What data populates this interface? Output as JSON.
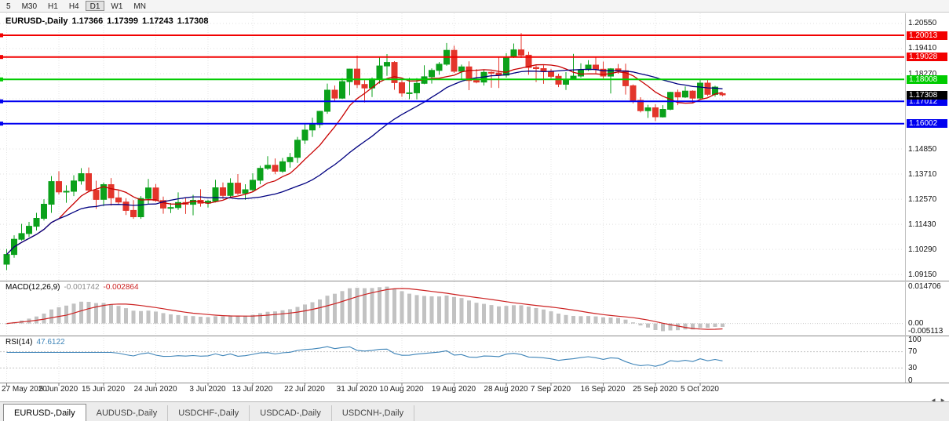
{
  "toolbar": {
    "timeframes": [
      {
        "label": "5",
        "active": false
      },
      {
        "label": "M30",
        "active": false
      },
      {
        "label": "H1",
        "active": false
      },
      {
        "label": "H4",
        "active": false
      },
      {
        "label": "D1",
        "active": true
      },
      {
        "label": "W1",
        "active": false
      },
      {
        "label": "MN",
        "active": false
      }
    ]
  },
  "chart": {
    "title": "EURUSD-,Daily",
    "ohlc": {
      "open": "1.17366",
      "high": "1.17399",
      "low": "1.17243",
      "close": "1.17308"
    },
    "price_axis_labels": [
      {
        "text": "1.20550",
        "value": 1.2055
      },
      {
        "text": "1.19410",
        "value": 1.1941
      },
      {
        "text": "1.18270",
        "value": 1.1827
      },
      {
        "text": "1.14850",
        "value": 1.1485
      },
      {
        "text": "1.13710",
        "value": 1.1371
      },
      {
        "text": "1.12570",
        "value": 1.1257
      },
      {
        "text": "1.11430",
        "value": 1.1143
      },
      {
        "text": "1.10290",
        "value": 1.1029
      },
      {
        "text": "1.09150",
        "value": 1.0915
      }
    ],
    "grid_values": [
      1.0915,
      1.1029,
      1.1143,
      1.1257,
      1.1371,
      1.1485,
      1.1599,
      1.1713,
      1.1827,
      1.1941,
      1.2055
    ],
    "hlines": [
      {
        "text": "1.20013",
        "value": 1.20013,
        "color": "#f20000"
      },
      {
        "text": "1.19028",
        "value": 1.19028,
        "color": "#f20000"
      },
      {
        "text": "1.18008",
        "value": 1.18008,
        "color": "#00cc00"
      },
      {
        "text": "1.17012",
        "value": 1.17012,
        "color": "#0000f0"
      },
      {
        "text": "1.16002",
        "value": 1.16002,
        "color": "#0000f0"
      }
    ],
    "current_price": {
      "text": "1.17308",
      "value": 1.17308,
      "bg": "#000000"
    }
  },
  "indicators": {
    "macd": {
      "name": "MACD(12,26,9)",
      "main_value": "-0.001742",
      "signal_value": "-0.002864",
      "axis_labels": [
        {
          "text": "0.014706",
          "anchor": "max"
        },
        {
          "text": "0.00",
          "anchor": "zero"
        },
        {
          "text": "-0.005113",
          "anchor": "min"
        }
      ],
      "histogram_color": "#c2c2c2",
      "signal_color": "#cc2222"
    },
    "rsi": {
      "name": "RSI(14)",
      "value": "47.6122",
      "axis_labels": [
        {
          "text": "100",
          "value": 100
        },
        {
          "text": "70",
          "value": 70
        },
        {
          "text": "30",
          "value": 30
        },
        {
          "text": "0",
          "value": 0
        }
      ],
      "levels": [
        70,
        30
      ],
      "color": "#3e84b8"
    }
  },
  "date_axis": [
    {
      "text": "27 May 2020",
      "bar": 0
    },
    {
      "text": "5 Jun 2020",
      "bar": 7
    },
    {
      "text": "15 Jun 2020",
      "bar": 13
    },
    {
      "text": "24 Jun 2020",
      "bar": 20
    },
    {
      "text": "3 Jul 2020",
      "bar": 27
    },
    {
      "text": "13 Jul 2020",
      "bar": 33
    },
    {
      "text": "22 Jul 2020",
      "bar": 40
    },
    {
      "text": "31 Jul 2020",
      "bar": 47
    },
    {
      "text": "10 Aug 2020",
      "bar": 53
    },
    {
      "text": "19 Aug 2020",
      "bar": 60
    },
    {
      "text": "28 Aug 2020",
      "bar": 67
    },
    {
      "text": "7 Sep 2020",
      "bar": 73
    },
    {
      "text": "16 Sep 2020",
      "bar": 80
    },
    {
      "text": "25 Sep 2020",
      "bar": 87
    },
    {
      "text": "5 Oct 2020",
      "bar": 93
    }
  ],
  "tabs": [
    {
      "label": "EURUSD-,Daily",
      "active": true
    },
    {
      "label": "AUDUSD-,Daily",
      "active": false
    },
    {
      "label": "USDCHF-,Daily",
      "active": false
    },
    {
      "label": "USDCAD-,Daily",
      "active": false
    },
    {
      "label": "USDCNH-,Daily",
      "active": false
    }
  ],
  "icons": {
    "tab_scroll_left": "◄",
    "tab_scroll_right": "►"
  },
  "chart_data": {
    "type": "candlestick",
    "symbol": "EURUSD-",
    "period": "Daily",
    "ylim": [
      1.0887,
      1.2101
    ],
    "up_color": "#0ba11b",
    "down_color": "#e3352b",
    "ma_overlays": [
      {
        "period": 8,
        "color": "#c80000"
      },
      {
        "period": 21,
        "color": "#000080"
      }
    ],
    "candles": [
      [
        "2020-05-27",
        1.0962,
        1.1031,
        1.0935,
        1.1006
      ],
      [
        "2020-05-28",
        1.1006,
        1.1093,
        1.0991,
        1.1075
      ],
      [
        "2020-05-29",
        1.1075,
        1.1145,
        1.1069,
        1.1101
      ],
      [
        "2020-06-01",
        1.1101,
        1.1154,
        1.1086,
        1.1134
      ],
      [
        "2020-06-02",
        1.1134,
        1.1195,
        1.1115,
        1.117
      ],
      [
        "2020-06-03",
        1.117,
        1.1257,
        1.116,
        1.1234
      ],
      [
        "2020-06-04",
        1.1234,
        1.1362,
        1.1195,
        1.1337
      ],
      [
        "2020-06-05",
        1.1337,
        1.1384,
        1.1279,
        1.129
      ],
      [
        "2020-06-08",
        1.129,
        1.132,
        1.1241,
        1.1293
      ],
      [
        "2020-06-09",
        1.1293,
        1.1366,
        1.1271,
        1.134
      ],
      [
        "2020-06-10",
        1.134,
        1.1398,
        1.1323,
        1.1373
      ],
      [
        "2020-06-11",
        1.1373,
        1.1401,
        1.1288,
        1.1298
      ],
      [
        "2020-06-12",
        1.1298,
        1.1341,
        1.1213,
        1.1256
      ],
      [
        "2020-06-15",
        1.1256,
        1.1333,
        1.1226,
        1.1323
      ],
      [
        "2020-06-16",
        1.1323,
        1.1353,
        1.1228,
        1.1263
      ],
      [
        "2020-06-17",
        1.1263,
        1.1296,
        1.1233,
        1.1244
      ],
      [
        "2020-06-18",
        1.1244,
        1.1262,
        1.1185,
        1.1206
      ],
      [
        "2020-06-19",
        1.1206,
        1.1253,
        1.1168,
        1.1177
      ],
      [
        "2020-06-22",
        1.1177,
        1.1271,
        1.1168,
        1.126
      ],
      [
        "2020-06-23",
        1.126,
        1.1349,
        1.1233,
        1.1308
      ],
      [
        "2020-06-24",
        1.1308,
        1.1326,
        1.1245,
        1.1251
      ],
      [
        "2020-06-25",
        1.1251,
        1.1269,
        1.1191,
        1.1217
      ],
      [
        "2020-06-26",
        1.1217,
        1.1239,
        1.1194,
        1.1219
      ],
      [
        "2020-06-29",
        1.1219,
        1.1288,
        1.1208,
        1.1242
      ],
      [
        "2020-06-30",
        1.1242,
        1.1262,
        1.119,
        1.1234
      ],
      [
        "2020-07-01",
        1.1234,
        1.1277,
        1.1184,
        1.1252
      ],
      [
        "2020-07-02",
        1.1252,
        1.1302,
        1.1223,
        1.1239
      ],
      [
        "2020-07-03",
        1.1239,
        1.1254,
        1.1219,
        1.1248
      ],
      [
        "2020-07-06",
        1.1248,
        1.1345,
        1.1242,
        1.1309
      ],
      [
        "2020-07-07",
        1.1309,
        1.1333,
        1.1259,
        1.1274
      ],
      [
        "2020-07-08",
        1.1274,
        1.1352,
        1.1266,
        1.133
      ],
      [
        "2020-07-09",
        1.133,
        1.1371,
        1.1276,
        1.1284
      ],
      [
        "2020-07-10",
        1.1284,
        1.1325,
        1.1254,
        1.13
      ],
      [
        "2020-07-13",
        1.13,
        1.1375,
        1.1291,
        1.1343
      ],
      [
        "2020-07-14",
        1.1343,
        1.1409,
        1.1325,
        1.1397
      ],
      [
        "2020-07-15",
        1.1397,
        1.1452,
        1.139,
        1.1411
      ],
      [
        "2020-07-16",
        1.1411,
        1.1442,
        1.137,
        1.1384
      ],
      [
        "2020-07-17",
        1.1384,
        1.1444,
        1.1377,
        1.1427
      ],
      [
        "2020-07-20",
        1.1427,
        1.1467,
        1.14,
        1.1447
      ],
      [
        "2020-07-21",
        1.1447,
        1.154,
        1.1422,
        1.1525
      ],
      [
        "2020-07-22",
        1.1525,
        1.1601,
        1.1507,
        1.1571
      ],
      [
        "2020-07-23",
        1.1571,
        1.1627,
        1.154,
        1.1596
      ],
      [
        "2020-07-24",
        1.1596,
        1.1658,
        1.1581,
        1.1656
      ],
      [
        "2020-07-27",
        1.1656,
        1.1782,
        1.1645,
        1.1752
      ],
      [
        "2020-07-28",
        1.1752,
        1.1773,
        1.17,
        1.1716
      ],
      [
        "2020-07-29",
        1.1716,
        1.1807,
        1.1712,
        1.1791
      ],
      [
        "2020-07-30",
        1.1791,
        1.1849,
        1.1729,
        1.1848
      ],
      [
        "2020-07-31",
        1.1848,
        1.1909,
        1.1762,
        1.1778
      ],
      [
        "2020-08-03",
        1.1778,
        1.1798,
        1.1696,
        1.1762
      ],
      [
        "2020-08-04",
        1.1762,
        1.181,
        1.1721,
        1.1803
      ],
      [
        "2020-08-05",
        1.1803,
        1.1905,
        1.1782,
        1.1862
      ],
      [
        "2020-08-06",
        1.1862,
        1.1916,
        1.1817,
        1.1878
      ],
      [
        "2020-08-07",
        1.1878,
        1.1884,
        1.1754,
        1.1786
      ],
      [
        "2020-08-10",
        1.1786,
        1.18,
        1.1722,
        1.1739
      ],
      [
        "2020-08-11",
        1.1739,
        1.1808,
        1.1711,
        1.174
      ],
      [
        "2020-08-12",
        1.174,
        1.1807,
        1.171,
        1.1783
      ],
      [
        "2020-08-13",
        1.1783,
        1.1865,
        1.1779,
        1.1813
      ],
      [
        "2020-08-14",
        1.1813,
        1.1851,
        1.1782,
        1.1842
      ],
      [
        "2020-08-17",
        1.1842,
        1.188,
        1.1822,
        1.187
      ],
      [
        "2020-08-18",
        1.187,
        1.1966,
        1.1863,
        1.1933
      ],
      [
        "2020-08-19",
        1.1933,
        1.1954,
        1.183,
        1.1838
      ],
      [
        "2020-08-20",
        1.1838,
        1.1868,
        1.18,
        1.1858
      ],
      [
        "2020-08-21",
        1.1858,
        1.1883,
        1.1752,
        1.1796
      ],
      [
        "2020-08-24",
        1.1796,
        1.1848,
        1.1783,
        1.1789
      ],
      [
        "2020-08-25",
        1.1789,
        1.1843,
        1.1773,
        1.1833
      ],
      [
        "2020-08-26",
        1.1833,
        1.1838,
        1.1763,
        1.183
      ],
      [
        "2020-08-27",
        1.183,
        1.1901,
        1.1762,
        1.182
      ],
      [
        "2020-08-28",
        1.182,
        1.192,
        1.1809,
        1.1903
      ],
      [
        "2020-08-31",
        1.1903,
        1.1964,
        1.1898,
        1.1935
      ],
      [
        "2020-09-01",
        1.1935,
        1.2011,
        1.1898,
        1.1911
      ],
      [
        "2020-09-02",
        1.1911,
        1.1927,
        1.1822,
        1.1855
      ],
      [
        "2020-09-03",
        1.1855,
        1.1865,
        1.1789,
        1.185
      ],
      [
        "2020-09-04",
        1.185,
        1.1865,
        1.1781,
        1.1838
      ],
      [
        "2020-09-07",
        1.1838,
        1.1849,
        1.1805,
        1.1815
      ],
      [
        "2020-09-08",
        1.1815,
        1.1827,
        1.1766,
        1.1779
      ],
      [
        "2020-09-09",
        1.1779,
        1.1834,
        1.1753,
        1.1802
      ],
      [
        "2020-09-10",
        1.1802,
        1.1917,
        1.1799,
        1.1816
      ],
      [
        "2020-09-11",
        1.1816,
        1.1874,
        1.1809,
        1.1845
      ],
      [
        "2020-09-14",
        1.1845,
        1.1888,
        1.1839,
        1.1866
      ],
      [
        "2020-09-15",
        1.1866,
        1.19,
        1.1829,
        1.1847
      ],
      [
        "2020-09-16",
        1.1847,
        1.1882,
        1.1805,
        1.1816
      ],
      [
        "2020-09-17",
        1.1816,
        1.1852,
        1.1737,
        1.1849
      ],
      [
        "2020-09-18",
        1.1849,
        1.1871,
        1.1827,
        1.184
      ],
      [
        "2020-09-21",
        1.184,
        1.1872,
        1.1732,
        1.1772
      ],
      [
        "2020-09-22",
        1.1772,
        1.1778,
        1.1692,
        1.1706
      ],
      [
        "2020-09-23",
        1.1706,
        1.172,
        1.1651,
        1.1659
      ],
      [
        "2020-09-24",
        1.1659,
        1.1686,
        1.1626,
        1.1672
      ],
      [
        "2020-09-25",
        1.1672,
        1.1688,
        1.1612,
        1.1631
      ],
      [
        "2020-09-28",
        1.1631,
        1.1684,
        1.1628,
        1.1665
      ],
      [
        "2020-09-29",
        1.1665,
        1.1745,
        1.1661,
        1.1742
      ],
      [
        "2020-09-30",
        1.1742,
        1.1755,
        1.1684,
        1.1721
      ],
      [
        "2020-10-01",
        1.1721,
        1.1769,
        1.1717,
        1.1748
      ],
      [
        "2020-10-02",
        1.1748,
        1.1751,
        1.1695,
        1.1716
      ],
      [
        "2020-10-05",
        1.1716,
        1.1798,
        1.1708,
        1.1784
      ],
      [
        "2020-10-06",
        1.1784,
        1.1798,
        1.1725,
        1.1733
      ],
      [
        "2020-10-07",
        1.1733,
        1.1772,
        1.1723,
        1.1766
      ],
      [
        "2020-10-08",
        1.17366,
        1.17399,
        1.17243,
        1.17308
      ]
    ]
  }
}
